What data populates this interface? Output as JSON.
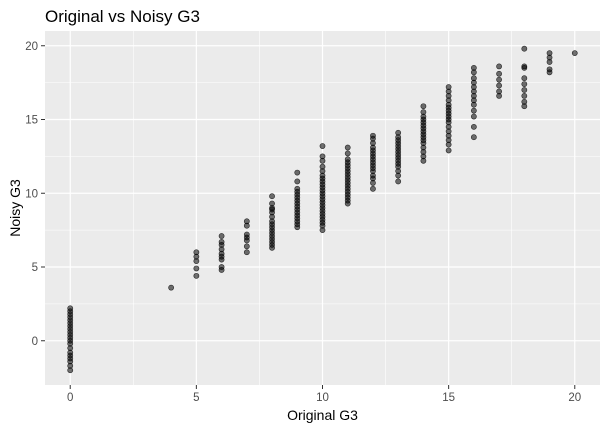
{
  "chart_data": {
    "type": "scatter",
    "title": "Original vs Noisy G3",
    "xlabel": "Original G3",
    "ylabel": "Noisy G3",
    "xlim": [
      -1,
      21
    ],
    "ylim": [
      -3,
      21
    ],
    "x_ticks": [
      0,
      5,
      10,
      15,
      20
    ],
    "y_ticks": [
      0,
      5,
      10,
      15,
      20
    ],
    "x_tick_labels": [
      "0",
      "5",
      "10",
      "15",
      "20"
    ],
    "y_tick_labels": [
      "0",
      "5",
      "10",
      "15",
      "20"
    ],
    "grid": true,
    "legend": "none",
    "colors": {
      "panel": "#ebebeb",
      "grid_major": "#ffffff",
      "point_fill": "#000000",
      "point_fill_opacity": 0.55,
      "tick": "#333333"
    },
    "series": [
      {
        "points": [
          [
            0,
            -2.0
          ],
          [
            0,
            -1.7
          ],
          [
            0,
            -1.4
          ],
          [
            0,
            -1.2
          ],
          [
            0,
            -1.0
          ],
          [
            0,
            -0.8
          ],
          [
            0,
            -0.5
          ],
          [
            0,
            -0.2
          ],
          [
            0,
            0.0
          ],
          [
            0,
            0.2
          ],
          [
            0,
            0.4
          ],
          [
            0,
            0.6
          ],
          [
            0,
            0.8
          ],
          [
            0,
            1.0
          ],
          [
            0,
            1.2
          ],
          [
            0,
            1.4
          ],
          [
            0,
            1.6
          ],
          [
            0,
            1.8
          ],
          [
            0,
            2.0
          ],
          [
            0,
            2.2
          ],
          [
            4,
            3.6
          ],
          [
            5,
            4.4
          ],
          [
            5,
            4.9
          ],
          [
            5,
            5.4
          ],
          [
            5,
            5.7
          ],
          [
            5,
            6.0
          ],
          [
            6,
            4.8
          ],
          [
            6,
            5.0
          ],
          [
            6,
            5.5
          ],
          [
            6,
            5.7
          ],
          [
            6,
            5.9
          ],
          [
            6,
            6.2
          ],
          [
            6,
            6.5
          ],
          [
            6,
            6.7
          ],
          [
            6,
            7.1
          ],
          [
            7,
            6.0
          ],
          [
            7,
            6.4
          ],
          [
            7,
            6.8
          ],
          [
            7,
            7.0
          ],
          [
            7,
            7.2
          ],
          [
            7,
            7.8
          ],
          [
            7,
            8.1
          ],
          [
            8,
            6.3
          ],
          [
            8,
            6.5
          ],
          [
            8,
            6.7
          ],
          [
            8,
            6.9
          ],
          [
            8,
            7.1
          ],
          [
            8,
            7.3
          ],
          [
            8,
            7.5
          ],
          [
            8,
            7.7
          ],
          [
            8,
            7.9
          ],
          [
            8,
            8.1
          ],
          [
            8,
            8.4
          ],
          [
            8,
            8.7
          ],
          [
            8,
            8.9
          ],
          [
            8,
            9.0
          ],
          [
            8,
            9.3
          ],
          [
            8,
            9.8
          ],
          [
            9,
            7.7
          ],
          [
            9,
            7.9
          ],
          [
            9,
            8.1
          ],
          [
            9,
            8.3
          ],
          [
            9,
            8.5
          ],
          [
            9,
            8.7
          ],
          [
            9,
            8.9
          ],
          [
            9,
            9.1
          ],
          [
            9,
            9.3
          ],
          [
            9,
            9.5
          ],
          [
            9,
            9.7
          ],
          [
            9,
            9.9
          ],
          [
            9,
            10.1
          ],
          [
            9,
            10.3
          ],
          [
            9,
            10.8
          ],
          [
            9,
            11.4
          ],
          [
            10,
            7.5
          ],
          [
            10,
            7.8
          ],
          [
            10,
            8.0
          ],
          [
            10,
            8.2
          ],
          [
            10,
            8.4
          ],
          [
            10,
            8.6
          ],
          [
            10,
            8.8
          ],
          [
            10,
            9.0
          ],
          [
            10,
            9.2
          ],
          [
            10,
            9.4
          ],
          [
            10,
            9.6
          ],
          [
            10,
            9.8
          ],
          [
            10,
            10.0
          ],
          [
            10,
            10.2
          ],
          [
            10,
            10.4
          ],
          [
            10,
            10.6
          ],
          [
            10,
            10.8
          ],
          [
            10,
            11.0
          ],
          [
            10,
            11.2
          ],
          [
            10,
            11.5
          ],
          [
            10,
            11.8
          ],
          [
            10,
            12.2
          ],
          [
            10,
            12.5
          ],
          [
            10,
            13.2
          ],
          [
            11,
            9.3
          ],
          [
            11,
            9.5
          ],
          [
            11,
            9.7
          ],
          [
            11,
            9.9
          ],
          [
            11,
            10.1
          ],
          [
            11,
            10.3
          ],
          [
            11,
            10.5
          ],
          [
            11,
            10.7
          ],
          [
            11,
            10.9
          ],
          [
            11,
            11.1
          ],
          [
            11,
            11.3
          ],
          [
            11,
            11.5
          ],
          [
            11,
            11.7
          ],
          [
            11,
            11.9
          ],
          [
            11,
            12.1
          ],
          [
            11,
            12.3
          ],
          [
            11,
            12.7
          ],
          [
            11,
            13.1
          ],
          [
            12,
            10.3
          ],
          [
            12,
            10.7
          ],
          [
            12,
            11.0
          ],
          [
            12,
            11.2
          ],
          [
            12,
            11.5
          ],
          [
            12,
            11.7
          ],
          [
            12,
            11.9
          ],
          [
            12,
            12.1
          ],
          [
            12,
            12.3
          ],
          [
            12,
            12.5
          ],
          [
            12,
            12.7
          ],
          [
            12,
            12.9
          ],
          [
            12,
            13.1
          ],
          [
            12,
            13.4
          ],
          [
            12,
            13.7
          ],
          [
            12,
            13.9
          ],
          [
            13,
            10.8
          ],
          [
            13,
            11.2
          ],
          [
            13,
            11.5
          ],
          [
            13,
            11.8
          ],
          [
            13,
            12.0
          ],
          [
            13,
            12.2
          ],
          [
            13,
            12.4
          ],
          [
            13,
            12.6
          ],
          [
            13,
            12.8
          ],
          [
            13,
            13.0
          ],
          [
            13,
            13.2
          ],
          [
            13,
            13.4
          ],
          [
            13,
            13.6
          ],
          [
            13,
            13.8
          ],
          [
            13,
            14.1
          ],
          [
            14,
            12.2
          ],
          [
            14,
            12.5
          ],
          [
            14,
            12.8
          ],
          [
            14,
            13.1
          ],
          [
            14,
            13.4
          ],
          [
            14,
            13.6
          ],
          [
            14,
            13.8
          ],
          [
            14,
            14.0
          ],
          [
            14,
            14.2
          ],
          [
            14,
            14.4
          ],
          [
            14,
            14.6
          ],
          [
            14,
            14.8
          ],
          [
            14,
            15.0
          ],
          [
            14,
            15.2
          ],
          [
            14,
            15.5
          ],
          [
            14,
            15.9
          ],
          [
            15,
            12.9
          ],
          [
            15,
            13.3
          ],
          [
            15,
            13.6
          ],
          [
            15,
            13.9
          ],
          [
            15,
            14.2
          ],
          [
            15,
            14.5
          ],
          [
            15,
            14.8
          ],
          [
            15,
            15.0
          ],
          [
            15,
            15.2
          ],
          [
            15,
            15.4
          ],
          [
            15,
            15.6
          ],
          [
            15,
            15.8
          ],
          [
            15,
            16.0
          ],
          [
            15,
            16.3
          ],
          [
            15,
            16.6
          ],
          [
            15,
            16.9
          ],
          [
            15,
            17.2
          ],
          [
            16,
            13.8
          ],
          [
            16,
            14.5
          ],
          [
            16,
            15.2
          ],
          [
            16,
            15.6
          ],
          [
            16,
            16.0
          ],
          [
            16,
            16.3
          ],
          [
            16,
            16.6
          ],
          [
            16,
            16.9
          ],
          [
            16,
            17.2
          ],
          [
            16,
            17.5
          ],
          [
            16,
            17.8
          ],
          [
            16,
            18.2
          ],
          [
            16,
            18.5
          ],
          [
            17,
            16.6
          ],
          [
            17,
            16.9
          ],
          [
            17,
            17.3
          ],
          [
            17,
            17.7
          ],
          [
            17,
            18.1
          ],
          [
            17,
            18.6
          ],
          [
            18,
            15.9
          ],
          [
            18,
            16.2
          ],
          [
            18,
            16.6
          ],
          [
            18,
            17.0
          ],
          [
            18,
            17.4
          ],
          [
            18,
            17.8
          ],
          [
            18,
            18.5
          ],
          [
            18,
            18.6
          ],
          [
            18,
            19.8
          ],
          [
            19,
            18.2
          ],
          [
            19,
            18.4
          ],
          [
            19,
            18.9
          ],
          [
            19,
            19.2
          ],
          [
            19,
            19.5
          ],
          [
            20,
            19.5
          ]
        ]
      }
    ]
  }
}
